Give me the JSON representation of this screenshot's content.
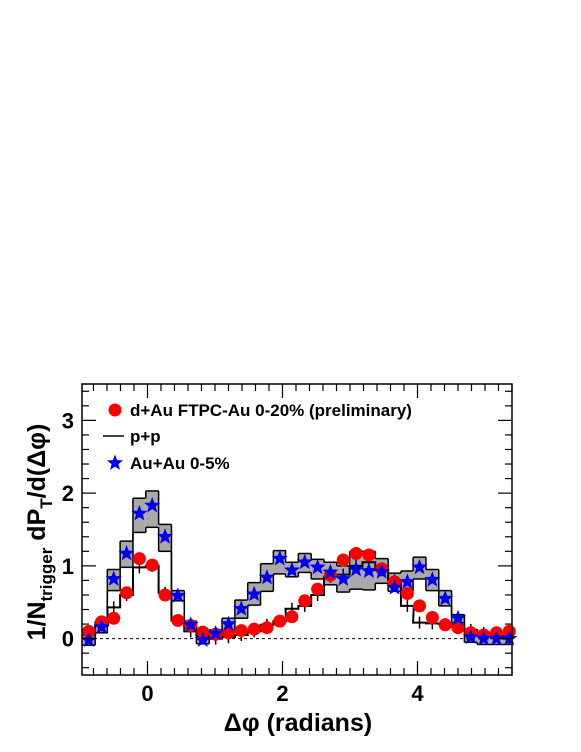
{
  "chart_data": {
    "type": "scatter",
    "xlabel": "Δφ (radians)",
    "ylabel": {
      "main": "1/N",
      "sub": "trigger",
      "rest": " dP",
      "sub2": "T",
      "tail": "/d(Δφ)"
    },
    "xlim": [
      -0.97,
      5.4
    ],
    "ylim": [
      -0.5,
      3.5
    ],
    "xticks": [
      {
        "v": 0,
        "label": "0"
      },
      {
        "v": 2,
        "label": "2"
      },
      {
        "v": 4,
        "label": "4"
      }
    ],
    "yticks": [
      {
        "v": 0,
        "label": "0"
      },
      {
        "v": 1,
        "label": "1"
      },
      {
        "v": 2,
        "label": "2"
      },
      {
        "v": 3,
        "label": "3"
      }
    ],
    "legend_position": "top-left",
    "colors": {
      "dAu": "#ff0000",
      "AuAu": "#0000ee",
      "band": "#a9a9a9",
      "pp": "#000000"
    },
    "x": [
      -0.87,
      -0.68,
      -0.5,
      -0.31,
      -0.12,
      0.07,
      0.26,
      0.45,
      0.64,
      0.82,
      1.01,
      1.2,
      1.39,
      1.58,
      1.77,
      1.96,
      2.14,
      2.33,
      2.52,
      2.71,
      2.9,
      3.09,
      3.28,
      3.47,
      3.66,
      3.85,
      4.03,
      4.22,
      4.41,
      4.6,
      4.79,
      4.98,
      5.17,
      5.36
    ],
    "series": [
      {
        "name": "d+Au FTPC-Au 0-20% (preliminary)",
        "marker": "circle",
        "values": [
          0.1,
          0.23,
          0.28,
          0.63,
          1.1,
          1.01,
          0.6,
          0.25,
          0.18,
          0.09,
          0.06,
          0.08,
          0.11,
          0.13,
          0.15,
          0.24,
          0.3,
          0.52,
          0.68,
          0.87,
          1.08,
          1.17,
          1.15,
          0.96,
          0.78,
          0.62,
          0.45,
          0.29,
          0.19,
          0.15,
          0.08,
          0.05,
          0.08,
          0.1
        ]
      },
      {
        "name": "p+p",
        "marker": "step",
        "values": [
          0.05,
          0.18,
          0.43,
          0.6,
          0.98,
          1.0,
          0.63,
          0.25,
          0.1,
          0.05,
          0.0,
          0.02,
          0.05,
          0.1,
          0.19,
          0.24,
          0.41,
          0.45,
          0.6,
          0.85,
          0.88,
          1.0,
          1.05,
          0.94,
          0.8,
          0.45,
          0.22,
          0.21,
          0.2,
          0.16,
          0.12,
          0.08,
          0.03,
          0.0
        ]
      },
      {
        "name": "Au+Au 0-5%",
        "marker": "star",
        "values": [
          -0.02,
          0.16,
          0.82,
          1.17,
          1.72,
          1.83,
          1.4,
          0.59,
          0.19,
          -0.02,
          0.07,
          0.2,
          0.41,
          0.61,
          0.84,
          1.1,
          0.94,
          1.05,
          0.98,
          0.91,
          0.82,
          0.95,
          0.93,
          0.92,
          0.7,
          0.78,
          0.98,
          0.81,
          0.55,
          0.28,
          0.02,
          0.0,
          0.0,
          0.0
        ],
        "band_low": [
          -0.09,
          0.08,
          0.66,
          0.98,
          1.46,
          1.53,
          1.2,
          0.52,
          0.15,
          -0.07,
          0.0,
          0.1,
          0.28,
          0.46,
          0.65,
          0.89,
          0.85,
          0.91,
          0.82,
          0.74,
          0.64,
          0.68,
          0.67,
          0.76,
          0.65,
          0.66,
          0.82,
          0.66,
          0.45,
          0.22,
          -0.05,
          -0.08,
          -0.08,
          -0.08
        ],
        "band_high": [
          0.05,
          0.24,
          0.95,
          1.34,
          1.93,
          2.03,
          1.57,
          0.66,
          0.24,
          0.03,
          0.12,
          0.28,
          0.53,
          0.77,
          1.03,
          1.21,
          1.05,
          1.17,
          1.09,
          1.05,
          1.0,
          1.2,
          1.2,
          1.1,
          0.9,
          0.93,
          1.12,
          0.95,
          0.66,
          0.33,
          0.08,
          0.05,
          0.05,
          0.05
        ]
      }
    ]
  }
}
